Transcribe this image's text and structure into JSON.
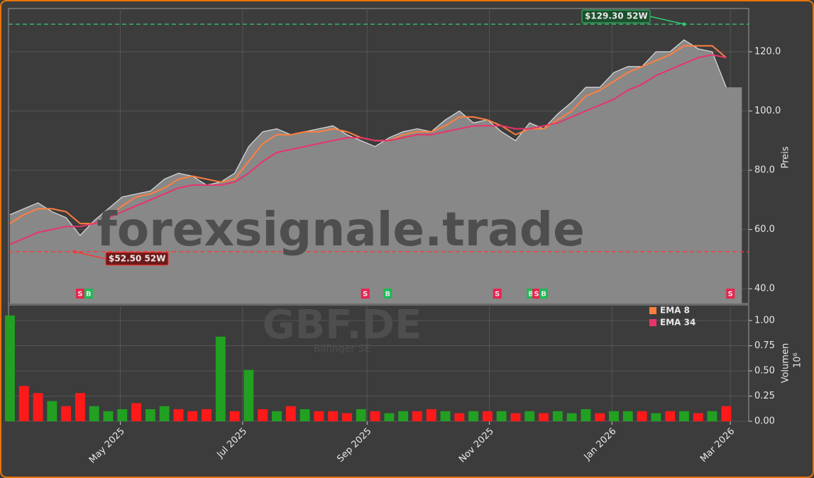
{
  "chart_data": {
    "type": "area",
    "ylabel": "Preis",
    "categories": [
      null,
      null,
      null,
      null,
      null,
      null,
      null,
      null,
      null,
      null,
      null,
      null,
      null,
      null,
      null,
      null,
      null,
      null,
      null,
      null,
      null,
      null,
      null,
      null,
      null,
      null,
      null,
      null,
      null,
      null,
      null,
      null,
      null,
      null,
      null,
      null,
      null,
      null,
      null,
      null,
      null,
      null,
      null,
      null,
      null,
      null,
      null,
      null,
      null,
      null,
      null,
      null
    ],
    "values": [
      65,
      67,
      69,
      66,
      64,
      58,
      63,
      67,
      71,
      72,
      73,
      77,
      79,
      78,
      75,
      76,
      79,
      88,
      93,
      94,
      92,
      93,
      94,
      95,
      92,
      90,
      88,
      91,
      93,
      94,
      93,
      97,
      100,
      96,
      97,
      93,
      90,
      96,
      94,
      99,
      103,
      108,
      108,
      113,
      115,
      115,
      120,
      120,
      124,
      121,
      120,
      108
    ],
    "color": "#888888",
    "line_color": "#dddddd",
    "series": [
      {
        "name": "EMA 8",
        "color": "#ff7f3f",
        "values": [
          62,
          65,
          67,
          67,
          66,
          62,
          62,
          64,
          68,
          71,
          72,
          74,
          77,
          78,
          77,
          76,
          77,
          83,
          89,
          92,
          92,
          93,
          93,
          94,
          93,
          91,
          90,
          90,
          92,
          93,
          93,
          95,
          98,
          98,
          97,
          95,
          92,
          94,
          94,
          97,
          100,
          105,
          107,
          110,
          113,
          115,
          117,
          119,
          122,
          122,
          122,
          118
        ]
      },
      {
        "name": "EMA 34",
        "color": "#e8336b",
        "values": [
          55,
          57,
          59,
          60,
          61,
          61,
          62,
          64,
          66,
          68,
          70,
          72,
          74,
          75,
          75,
          75,
          76,
          79,
          83,
          86,
          87,
          88,
          89,
          90,
          91,
          91,
          90,
          90,
          91,
          92,
          92,
          93,
          94,
          95,
          95,
          95,
          94,
          94,
          95,
          96,
          98,
          100,
          102,
          104,
          107,
          109,
          112,
          114,
          116,
          118,
          119,
          118
        ]
      }
    ],
    "xlim": [
      -0.1,
      52.6
    ],
    "xticks": [
      {
        "value": 7.86,
        "label": "May 2025"
      },
      {
        "value": 16.57,
        "label": "Jul 2025"
      },
      {
        "value": 25.43,
        "label": "Sep 2025"
      },
      {
        "value": 34.14,
        "label": "Nov 2025"
      },
      {
        "value": 42.86,
        "label": "Jan 2026"
      },
      {
        "value": 51.29,
        "label": "Mar 2026"
      }
    ],
    "ylim": [
      35,
      134.6
    ],
    "yticks": [
      {
        "value": 40,
        "label": "40.0"
      },
      {
        "value": 60,
        "label": "60.0"
      },
      {
        "value": 80,
        "label": "80.0"
      },
      {
        "value": 100,
        "label": "100.0"
      },
      {
        "value": 120,
        "label": "120.0"
      }
    ],
    "grid": true,
    "annotations": [
      {
        "text": "$129.30 52W",
        "value": 129.3,
        "x": 48,
        "color": "#2ecc71"
      },
      {
        "text": "$52.50 52W",
        "value": 52.5,
        "x": 4.6,
        "color": "#ff3333"
      }
    ],
    "signals": [
      {
        "label": "S",
        "x": 5.0,
        "color": "#e8234f"
      },
      {
        "label": "B",
        "x": 5.6,
        "color": "#1db954"
      },
      {
        "label": "S",
        "x": 25.3,
        "color": "#e8234f"
      },
      {
        "label": "B",
        "x": 26.9,
        "color": "#1db954"
      },
      {
        "label": "S",
        "x": 34.7,
        "color": "#e8234f"
      },
      {
        "label": "B",
        "x": 37.1,
        "color": "#1db954"
      },
      {
        "label": "S",
        "x": 37.5,
        "color": "#e8234f"
      },
      {
        "label": "B",
        "x": 38.0,
        "color": "#1db954"
      },
      {
        "label": "S",
        "x": 51.3,
        "color": "#e8234f"
      }
    ],
    "volume": {
      "label": "Volumen",
      "exponent": "10⁶",
      "values": [
        1.05,
        0.35,
        0.28,
        0.2,
        0.15,
        0.28,
        0.15,
        0.1,
        0.12,
        0.18,
        0.12,
        0.15,
        0.12,
        0.1,
        0.12,
        0.84,
        0.1,
        0.51,
        0.12,
        0.1,
        0.15,
        0.12,
        0.1,
        0.1,
        0.08,
        0.12,
        0.1,
        0.08,
        0.1,
        0.1,
        0.12,
        0.1,
        0.08,
        0.1,
        0.1,
        0.1,
        0.08,
        0.1,
        0.08,
        0.1,
        0.08,
        0.12,
        0.08,
        0.1,
        0.1,
        0.1,
        0.08,
        0.1,
        0.1,
        0.08,
        0.1,
        0.15
      ],
      "colors": [
        "#22a022",
        "#ff1a1a",
        "#ff1a1a",
        "#22a022",
        "#ff1a1a",
        "#ff1a1a",
        "#22a022",
        "#22a022",
        "#22a022",
        "#ff1a1a",
        "#22a022",
        "#22a022",
        "#ff1a1a",
        "#ff1a1a",
        "#ff1a1a",
        "#22a022",
        "#ff1a1a",
        "#22a022",
        "#ff1a1a",
        "#22a022",
        "#ff1a1a",
        "#22a022",
        "#ff1a1a",
        "#ff1a1a",
        "#ff1a1a",
        "#22a022",
        "#ff1a1a",
        "#22a022",
        "#22a022",
        "#ff1a1a",
        "#ff1a1a",
        "#22a022",
        "#ff1a1a",
        "#22a022",
        "#ff1a1a",
        "#22a022",
        "#ff1a1a",
        "#22a022",
        "#ff1a1a",
        "#22a022",
        "#22a022",
        "#22a022",
        "#ff1a1a",
        "#22a022",
        "#22a022",
        "#ff1a1a",
        "#22a022",
        "#ff1a1a",
        "#22a022",
        "#ff1a1a",
        "#22a022",
        "#ff1a1a"
      ],
      "ylim": [
        0,
        1.155
      ],
      "yticks": [
        {
          "value": 0,
          "label": "0.00"
        },
        {
          "value": 0.25,
          "label": "0.25"
        },
        {
          "value": 0.5,
          "label": "0.50"
        },
        {
          "value": 0.75,
          "label": "0.75"
        },
        {
          "value": 1,
          "label": "1.00"
        }
      ]
    },
    "watermarks": {
      "site": "forexsignale.trade",
      "ticker": "GBF.DE",
      "company": "Bilfinger SE"
    }
  }
}
